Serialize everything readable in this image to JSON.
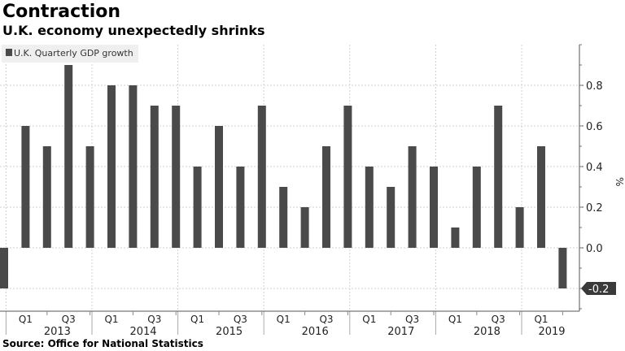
{
  "title": "Contraction",
  "subtitle": "U.K. economy unexpectedly shrinks",
  "source": "Source: Office for National Statistics",
  "chart_data": {
    "type": "bar",
    "title": "Contraction",
    "subtitle": "U.K. economy unexpectedly shrinks",
    "ylabel": "%",
    "ylim": [
      -0.3,
      1.0
    ],
    "yticks": [
      "0.0",
      "0.2",
      "0.4",
      "0.6",
      "0.8"
    ],
    "grid": true,
    "legend": {
      "placement": "top-left",
      "entries": [
        "U.K. Quarterly GDP growth"
      ]
    },
    "bar_color": "#4a4a4a",
    "last_value_label": "-0.2",
    "categories": [
      "2012 Q4",
      "2013 Q1",
      "2013 Q2",
      "2013 Q3",
      "2013 Q4",
      "2014 Q1",
      "2014 Q2",
      "2014 Q3",
      "2014 Q4",
      "2015 Q1",
      "2015 Q2",
      "2015 Q3",
      "2015 Q4",
      "2016 Q1",
      "2016 Q2",
      "2016 Q3",
      "2016 Q4",
      "2017 Q1",
      "2017 Q2",
      "2017 Q3",
      "2017 Q4",
      "2018 Q1",
      "2018 Q2",
      "2018 Q3",
      "2018 Q4",
      "2019 Q1",
      "2019 Q2"
    ],
    "values": [
      -0.2,
      0.6,
      0.5,
      0.9,
      0.5,
      0.8,
      0.8,
      0.7,
      0.7,
      0.4,
      0.6,
      0.4,
      0.7,
      0.3,
      0.2,
      0.5,
      0.7,
      0.4,
      0.3,
      0.5,
      0.4,
      0.1,
      0.4,
      0.7,
      0.2,
      0.5,
      -0.2
    ],
    "quarter_labels": [
      "Q1",
      "Q3"
    ],
    "years": [
      "2013",
      "2014",
      "2015",
      "2016",
      "2017",
      "2018",
      "2019"
    ]
  }
}
